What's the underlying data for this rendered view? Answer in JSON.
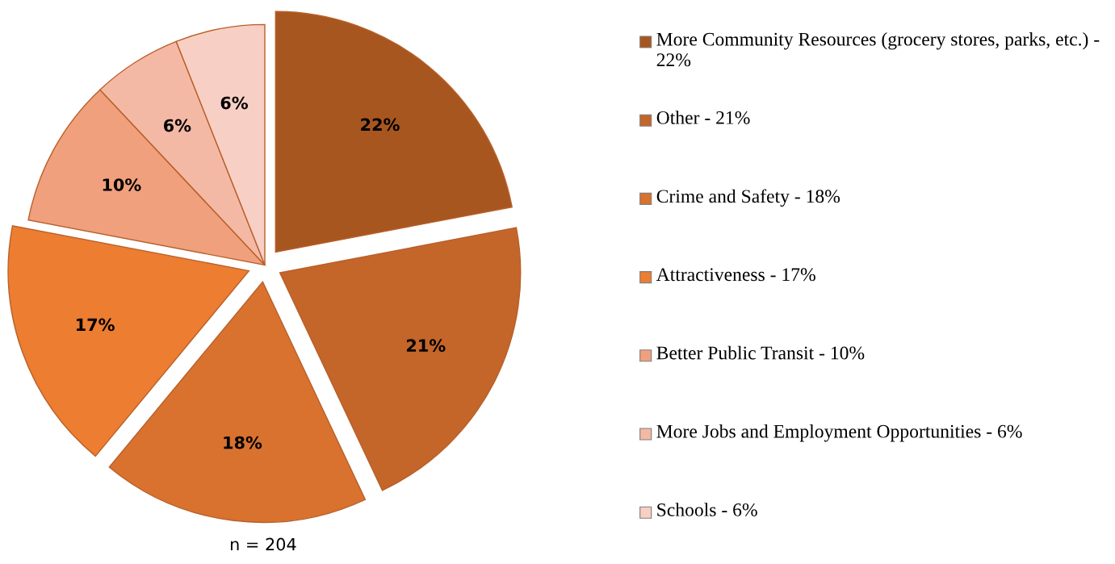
{
  "chart_data": {
    "type": "pie",
    "categories": [
      "More Community Resources (grocery stores, parks, etc.) - 22%",
      "Other - 21%",
      "Crime and Safety - 18%",
      "Attractiveness - 17%",
      "Better Public Transit - 10%",
      "More Jobs and Employment Opportunities - 6%",
      "Schools - 6%"
    ],
    "values": [
      22,
      21,
      18,
      17,
      10,
      6,
      6
    ],
    "colors": [
      "#a8561f",
      "#c4652a",
      "#d9722e",
      "#ec7d31",
      "#f0a07c",
      "#f4b9a5",
      "#f8cfc4"
    ],
    "value_labels": [
      "22%",
      "21%",
      "18%",
      "17%",
      "10%",
      "6%",
      "6%"
    ],
    "legend": "right",
    "annotations": [
      "n = 204"
    ]
  }
}
